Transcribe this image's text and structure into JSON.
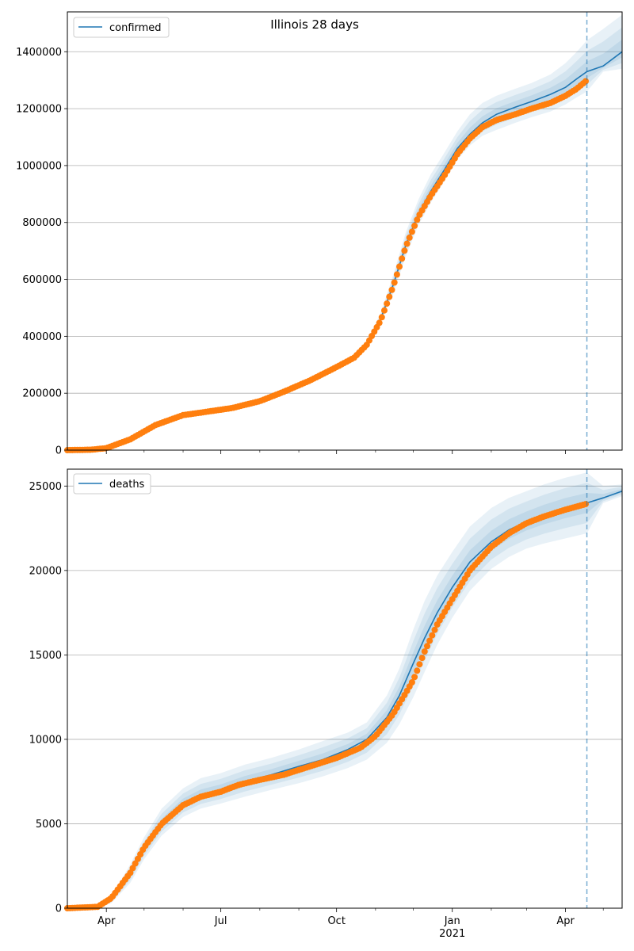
{
  "figure_title": "Illinois 28 days",
  "colors": {
    "model": "#1f77b4",
    "observed": "#ff7f0e",
    "band": "#1f77b4",
    "grid": "#b0b0b0",
    "vline": "#1f77b4"
  },
  "x_axis": {
    "start": "2020-03-01",
    "end": "2021-05-16",
    "tick_labels": [
      {
        "date": "2020-04-01",
        "label": "Apr"
      },
      {
        "date": "2020-07-01",
        "label": "Jul"
      },
      {
        "date": "2020-10-01",
        "label": "Oct"
      },
      {
        "date": "2021-01-01",
        "label": "Jan",
        "sublabel": "2021"
      },
      {
        "date": "2021-04-01",
        "label": "Apr"
      }
    ],
    "minor_ticks": [
      "2020-05-01",
      "2020-06-01",
      "2020-08-01",
      "2020-09-01",
      "2020-11-01",
      "2020-12-01",
      "2021-02-01",
      "2021-03-01",
      "2021-05-01"
    ],
    "forecast_start": "2021-04-18"
  },
  "chart_data": [
    {
      "type": "line",
      "legend": "confirmed",
      "legend_position": "top-left",
      "grid": "horizontal",
      "ylim": [
        0,
        1540000
      ],
      "yticks": [
        0,
        200000,
        400000,
        600000,
        800000,
        1000000,
        1200000,
        1400000
      ],
      "model": {
        "x": [
          "2020-03-01",
          "2020-03-20",
          "2020-04-01",
          "2020-04-20",
          "2020-05-10",
          "2020-06-01",
          "2020-06-20",
          "2020-07-10",
          "2020-08-01",
          "2020-08-20",
          "2020-09-10",
          "2020-10-01",
          "2020-10-15",
          "2020-10-25",
          "2020-11-05",
          "2020-11-15",
          "2020-11-25",
          "2020-12-05",
          "2020-12-15",
          "2020-12-25",
          "2021-01-05",
          "2021-01-15",
          "2021-01-25",
          "2021-02-05",
          "2021-02-20",
          "2021-03-05",
          "2021-03-20",
          "2021-04-01",
          "2021-04-10",
          "2021-04-18",
          "2021-05-01",
          "2021-05-16"
        ],
        "y": [
          0,
          2000,
          8000,
          40000,
          90000,
          125000,
          137000,
          150000,
          175000,
          207000,
          248000,
          295000,
          330000,
          375000,
          460000,
          580000,
          720000,
          830000,
          910000,
          980000,
          1060000,
          1110000,
          1150000,
          1180000,
          1205000,
          1225000,
          1250000,
          1275000,
          1305000,
          1330000,
          1350000,
          1400000
        ]
      },
      "band": {
        "x": [
          "2020-10-25",
          "2020-11-05",
          "2020-11-15",
          "2020-11-25",
          "2020-12-05",
          "2020-12-15",
          "2020-12-25",
          "2021-01-05",
          "2021-01-15",
          "2021-01-25",
          "2021-02-05",
          "2021-02-20",
          "2021-03-05",
          "2021-03-20",
          "2021-04-01",
          "2021-04-10",
          "2021-04-18",
          "2021-05-01",
          "2021-05-16"
        ],
        "lo": [
          370000,
          445000,
          550000,
          680000,
          790000,
          870000,
          940000,
          1020000,
          1070000,
          1105000,
          1125000,
          1150000,
          1170000,
          1190000,
          1215000,
          1240000,
          1260000,
          1330000,
          1340000
        ],
        "hi": [
          385000,
          480000,
          615000,
          765000,
          880000,
          970000,
          1040000,
          1120000,
          1180000,
          1220000,
          1245000,
          1270000,
          1290000,
          1320000,
          1360000,
          1400000,
          1440000,
          1480000,
          1530000
        ]
      },
      "observed": {
        "x": [
          "2020-03-01",
          "2020-03-20",
          "2020-04-01",
          "2020-04-20",
          "2020-05-10",
          "2020-06-01",
          "2020-06-20",
          "2020-07-10",
          "2020-08-01",
          "2020-08-20",
          "2020-09-10",
          "2020-10-01",
          "2020-10-15",
          "2020-10-25",
          "2020-11-05",
          "2020-11-15",
          "2020-11-25",
          "2020-12-05",
          "2020-12-15",
          "2020-12-25",
          "2021-01-05",
          "2021-01-15",
          "2021-01-25",
          "2021-02-05",
          "2021-02-20",
          "2021-03-05",
          "2021-03-20",
          "2021-04-01",
          "2021-04-10",
          "2021-04-18"
        ],
        "y": [
          0,
          1500,
          7000,
          38000,
          88000,
          123000,
          135000,
          148000,
          172000,
          205000,
          245000,
          292000,
          325000,
          370000,
          455000,
          575000,
          715000,
          820000,
          895000,
          960000,
          1040000,
          1095000,
          1135000,
          1160000,
          1180000,
          1200000,
          1220000,
          1245000,
          1270000,
          1300000
        ]
      }
    },
    {
      "type": "line",
      "legend": "deaths",
      "legend_position": "top-left",
      "grid": "horizontal",
      "ylim": [
        0,
        26000
      ],
      "yticks": [
        0,
        5000,
        10000,
        15000,
        20000,
        25000
      ],
      "model": {
        "x": [
          "2020-03-01",
          "2020-03-25",
          "2020-04-05",
          "2020-04-20",
          "2020-05-01",
          "2020-05-15",
          "2020-06-01",
          "2020-06-15",
          "2020-07-01",
          "2020-07-20",
          "2020-08-10",
          "2020-09-01",
          "2020-09-20",
          "2020-10-10",
          "2020-10-25",
          "2020-11-10",
          "2020-11-20",
          "2020-12-01",
          "2020-12-10",
          "2020-12-20",
          "2021-01-01",
          "2021-01-15",
          "2021-02-01",
          "2021-02-15",
          "2021-03-01",
          "2021-03-15",
          "2021-04-01",
          "2021-04-18",
          "2021-05-01",
          "2021-05-16"
        ],
        "y": [
          0,
          50,
          500,
          2000,
          3500,
          5000,
          6200,
          6700,
          7000,
          7500,
          7900,
          8400,
          8800,
          9400,
          10000,
          11300,
          12600,
          14500,
          16000,
          17500,
          19000,
          20500,
          21700,
          22400,
          22900,
          23300,
          23700,
          24000,
          24300,
          24700
        ]
      },
      "band": {
        "x": [
          "2020-03-25",
          "2020-04-05",
          "2020-04-20",
          "2020-05-01",
          "2020-05-15",
          "2020-06-01",
          "2020-06-15",
          "2020-07-01",
          "2020-07-20",
          "2020-08-10",
          "2020-09-01",
          "2020-09-20",
          "2020-10-10",
          "2020-10-25",
          "2020-11-10",
          "2020-11-20",
          "2020-12-01",
          "2020-12-10",
          "2020-12-20",
          "2021-01-01",
          "2021-01-15",
          "2021-02-01",
          "2021-02-15",
          "2021-03-01",
          "2021-03-15",
          "2021-04-01",
          "2021-04-18",
          "2021-05-01",
          "2021-05-16"
        ],
        "lo": [
          20,
          300,
          1500,
          2900,
          4300,
          5400,
          5900,
          6200,
          6600,
          7000,
          7400,
          7800,
          8300,
          8800,
          9800,
          10900,
          12500,
          14000,
          15600,
          17200,
          18800,
          20100,
          20800,
          21300,
          21600,
          21900,
          22200,
          24000,
          24400
        ],
        "hi": [
          80,
          700,
          2600,
          4200,
          5900,
          7100,
          7700,
          8000,
          8500,
          8900,
          9400,
          9900,
          10400,
          11000,
          12600,
          14200,
          16500,
          18200,
          19700,
          21100,
          22600,
          23700,
          24300,
          24700,
          25100,
          25500,
          25800,
          25000,
          25100
        ]
      },
      "observed": {
        "x": [
          "2020-03-01",
          "2020-03-25",
          "2020-04-05",
          "2020-04-20",
          "2020-05-01",
          "2020-05-15",
          "2020-06-01",
          "2020-06-15",
          "2020-07-01",
          "2020-07-15",
          "2020-08-01",
          "2020-08-20",
          "2020-09-10",
          "2020-10-01",
          "2020-10-20",
          "2020-11-01",
          "2020-11-15",
          "2020-12-01",
          "2020-12-10",
          "2020-12-20",
          "2021-01-01",
          "2021-01-15",
          "2021-02-01",
          "2021-02-15",
          "2021-03-01",
          "2021-03-15",
          "2021-04-01",
          "2021-04-18"
        ],
        "y": [
          0,
          80,
          600,
          2100,
          3600,
          5000,
          6100,
          6600,
          6900,
          7300,
          7600,
          7900,
          8400,
          8900,
          9500,
          10200,
          11500,
          13500,
          15200,
          16800,
          18300,
          20000,
          21400,
          22200,
          22800,
          23200,
          23600,
          23950
        ]
      }
    }
  ]
}
